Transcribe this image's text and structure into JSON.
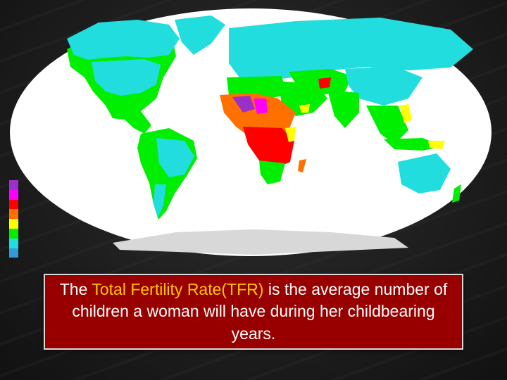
{
  "legend": {
    "colors": [
      "#9b30c8",
      "#ff00ff",
      "#ff0000",
      "#ff7000",
      "#ffff00",
      "#00ee00",
      "#22dddd",
      "#3399dd"
    ]
  },
  "map": {
    "colors": {
      "ocean": "#ffffff",
      "low": "#22dddd",
      "medium": "#00ee00",
      "mid_high": "#ffff00",
      "high": "#ff7000",
      "very_high": "#ff0000",
      "extreme": "#ff00ff",
      "highest": "#9b30c8",
      "antarctica": "#d8d8d8"
    }
  },
  "caption": {
    "lead": "The ",
    "highlight": "Total Fertility Rate(TFR)",
    "rest": " is the average number of children a woman will have during her childbearing years.",
    "highlight_color": "#ffc800",
    "box_color": "#980000"
  }
}
